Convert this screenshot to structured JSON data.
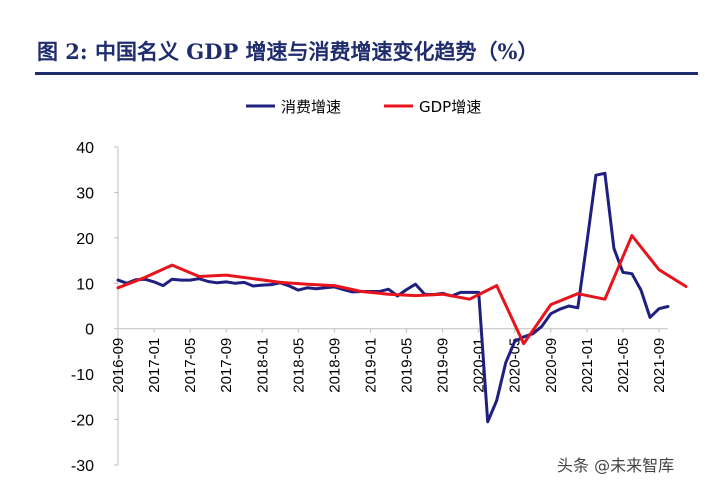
{
  "figure_title": "图 2: 中国名义 GDP 增速与消费增速变化趋势（%）",
  "watermark": "头条 @未来智库",
  "colors": {
    "consumption": "#1f1f80",
    "gdp": "#e8141c",
    "title": "#1f2d6e"
  },
  "chart_data": {
    "type": "line",
    "ylim": [
      -30,
      40
    ],
    "yticks": [
      40,
      30,
      20,
      10,
      0,
      -10,
      -20,
      -30
    ],
    "x_start": "2016-09",
    "x_end": "2021-10",
    "xticks": [
      "2016-09",
      "2017-01",
      "2017-05",
      "2017-09",
      "2018-01",
      "2018-05",
      "2018-09",
      "2019-01",
      "2019-05",
      "2019-09",
      "2020-01",
      "2020-05",
      "2020-09",
      "2021-01",
      "2021-05",
      "2021-09"
    ],
    "legend_position": "top-center",
    "series": [
      {
        "name": "消费增速",
        "color": "#1f1f80",
        "points": [
          [
            "2016-09",
            10.7
          ],
          [
            "2016-10",
            10.0
          ],
          [
            "2016-11",
            10.8
          ],
          [
            "2016-12",
            10.9
          ],
          [
            "2017-01",
            10.3
          ],
          [
            "2017-02",
            9.5
          ],
          [
            "2017-03",
            10.9
          ],
          [
            "2017-04",
            10.7
          ],
          [
            "2017-05",
            10.7
          ],
          [
            "2017-06",
            11.0
          ],
          [
            "2017-07",
            10.4
          ],
          [
            "2017-08",
            10.1
          ],
          [
            "2017-09",
            10.3
          ],
          [
            "2017-10",
            10.0
          ],
          [
            "2017-11",
            10.2
          ],
          [
            "2017-12",
            9.4
          ],
          [
            "2018-01",
            9.6
          ],
          [
            "2018-02",
            9.7
          ],
          [
            "2018-03",
            10.1
          ],
          [
            "2018-04",
            9.4
          ],
          [
            "2018-05",
            8.5
          ],
          [
            "2018-06",
            9.0
          ],
          [
            "2018-07",
            8.8
          ],
          [
            "2018-08",
            9.0
          ],
          [
            "2018-09",
            9.2
          ],
          [
            "2018-10",
            8.6
          ],
          [
            "2018-11",
            8.1
          ],
          [
            "2018-12",
            8.2
          ],
          [
            "2019-01",
            8.2
          ],
          [
            "2019-02",
            8.2
          ],
          [
            "2019-03",
            8.7
          ],
          [
            "2019-04",
            7.2
          ],
          [
            "2019-05",
            8.6
          ],
          [
            "2019-06",
            9.8
          ],
          [
            "2019-07",
            7.6
          ],
          [
            "2019-08",
            7.5
          ],
          [
            "2019-09",
            7.8
          ],
          [
            "2019-10",
            7.2
          ],
          [
            "2019-11",
            8.0
          ],
          [
            "2019-12",
            8.0
          ],
          [
            "2020-01",
            8.0
          ],
          [
            "2020-02",
            -20.5
          ],
          [
            "2020-03",
            -15.8
          ],
          [
            "2020-04",
            -7.5
          ],
          [
            "2020-05",
            -2.8
          ],
          [
            "2020-06",
            -1.8
          ],
          [
            "2020-07",
            -1.1
          ],
          [
            "2020-08",
            0.5
          ],
          [
            "2020-09",
            3.3
          ],
          [
            "2020-10",
            4.3
          ],
          [
            "2020-11",
            5.0
          ],
          [
            "2020-12",
            4.6
          ],
          [
            "2021-01",
            19.0
          ],
          [
            "2021-02",
            33.8
          ],
          [
            "2021-03",
            34.2
          ],
          [
            "2021-04",
            17.7
          ],
          [
            "2021-05",
            12.4
          ],
          [
            "2021-06",
            12.1
          ],
          [
            "2021-07",
            8.5
          ],
          [
            "2021-08",
            2.5
          ],
          [
            "2021-09",
            4.4
          ],
          [
            "2021-10",
            4.9
          ]
        ]
      },
      {
        "name": "GDP增速",
        "color": "#e8141c",
        "points": [
          [
            "2016-09",
            9.0
          ],
          [
            "2016-12",
            11.3
          ],
          [
            "2017-03",
            14.0
          ],
          [
            "2017-06",
            11.5
          ],
          [
            "2017-09",
            11.8
          ],
          [
            "2017-12",
            11.0
          ],
          [
            "2018-03",
            10.2
          ],
          [
            "2018-06",
            9.8
          ],
          [
            "2018-09",
            9.5
          ],
          [
            "2018-12",
            8.2
          ],
          [
            "2019-03",
            7.6
          ],
          [
            "2019-06",
            7.3
          ],
          [
            "2019-09",
            7.6
          ],
          [
            "2019-12",
            6.5
          ],
          [
            "2020-03",
            9.5
          ],
          [
            "2020-06",
            -3.3
          ],
          [
            "2020-09",
            5.3
          ],
          [
            "2020-12",
            7.7
          ],
          [
            "2021-03",
            6.5
          ],
          [
            "2021-06",
            20.5
          ],
          [
            "2021-09",
            13.0
          ],
          [
            "2021-12",
            9.3
          ]
        ]
      }
    ]
  }
}
